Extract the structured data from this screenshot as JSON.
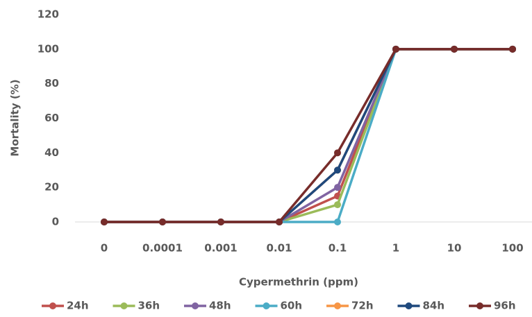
{
  "chart_data": {
    "type": "line",
    "x_label": "Cypermethrin (ppm)",
    "y_label": "Mortality (%)",
    "categories": [
      "0",
      "0.0001",
      "0.001",
      "0.01",
      "0.1",
      "1",
      "10",
      "100"
    ],
    "series": [
      {
        "name": "24h",
        "color": "#c0504d",
        "values": [
          0,
          0,
          0,
          0,
          15,
          100,
          100,
          100
        ]
      },
      {
        "name": "36h",
        "color": "#9bbb59",
        "values": [
          0,
          0,
          0,
          0,
          10,
          100,
          100,
          100
        ]
      },
      {
        "name": "48h",
        "color": "#8064a2",
        "values": [
          0,
          0,
          0,
          0,
          20,
          100,
          100,
          100
        ]
      },
      {
        "name": "60h",
        "color": "#4bacc6",
        "values": [
          0,
          0,
          0,
          0,
          0,
          100,
          100,
          100
        ]
      },
      {
        "name": "72h",
        "color": "#f79646",
        "values": [
          0,
          0,
          0,
          0,
          30,
          100,
          100,
          100
        ]
      },
      {
        "name": "84h",
        "color": "#1f497d",
        "values": [
          0,
          0,
          0,
          0,
          30,
          100,
          100,
          100
        ]
      },
      {
        "name": "96h",
        "color": "#772c2a",
        "values": [
          0,
          0,
          0,
          0,
          40,
          100,
          100,
          100
        ]
      }
    ],
    "ylim": [
      0,
      120
    ],
    "yticks": [
      0,
      20,
      40,
      60,
      80,
      100,
      120
    ],
    "grid": false,
    "legend": "bottom"
  }
}
